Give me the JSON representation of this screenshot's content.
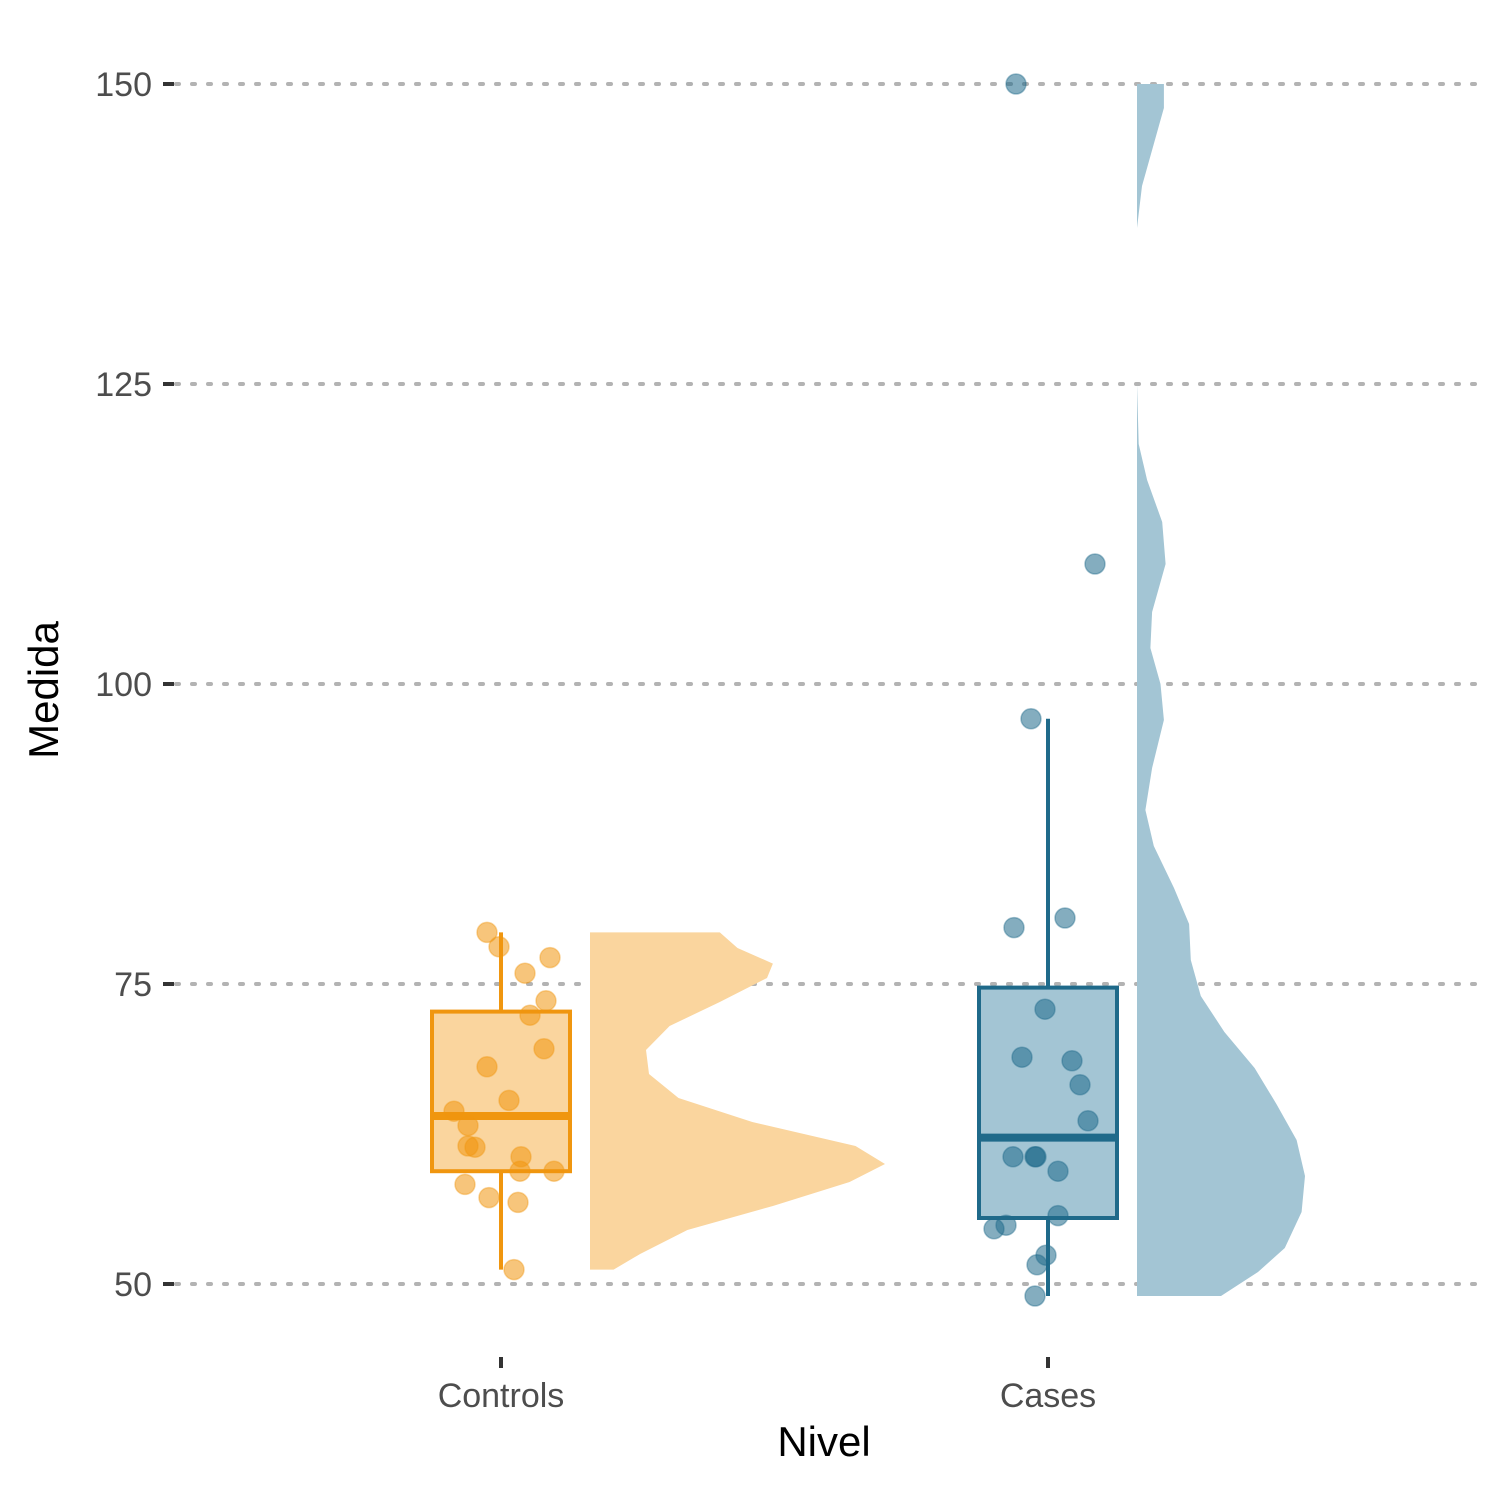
{
  "chart_data": {
    "type": "raincloud",
    "xlabel": "Nivel",
    "ylabel": "Medida",
    "ylim": [
      45,
      152
    ],
    "yticks": [
      50,
      75,
      100,
      125,
      150
    ],
    "grid": "horizontal dotted",
    "categories": [
      "Controls",
      "Cases"
    ],
    "groups": [
      {
        "name": "Controls",
        "color": "#F0960F",
        "fill": "#FAD59E",
        "points": [
          79.3,
          78.1,
          77.2,
          75.9,
          73.6,
          72.4,
          69.6,
          68.1,
          65.3,
          64.4,
          63.2,
          61.5,
          61.4,
          60.6,
          59.4,
          59.4,
          58.3,
          57.2,
          56.8,
          51.2
        ],
        "box": {
          "whisker_low": 51.2,
          "q1": 59.4,
          "median": 64.0,
          "q3": 72.7,
          "whisker_high": 79.3
        },
        "density": [
          [
            51.2,
            0.08
          ],
          [
            52.5,
            0.17
          ],
          [
            54.5,
            0.33
          ],
          [
            56.5,
            0.62
          ],
          [
            58.5,
            0.88
          ],
          [
            60.0,
            1.0
          ],
          [
            61.5,
            0.9
          ],
          [
            63.5,
            0.55
          ],
          [
            65.5,
            0.3
          ],
          [
            67.5,
            0.2
          ],
          [
            69.5,
            0.19
          ],
          [
            71.5,
            0.27
          ],
          [
            73.5,
            0.44
          ],
          [
            75.5,
            0.6
          ],
          [
            76.7,
            0.62
          ],
          [
            78.0,
            0.5
          ],
          [
            79.3,
            0.44
          ]
        ]
      },
      {
        "name": "Cases",
        "color": "#1F6A8A",
        "fill": "#A3C5D4",
        "points": [
          150.0,
          110.0,
          97.1,
          80.5,
          79.7,
          72.9,
          68.9,
          68.6,
          66.6,
          63.6,
          60.6,
          60.6,
          60.6,
          59.4,
          55.7,
          54.9,
          54.6,
          52.4,
          51.6,
          49.0
        ],
        "box": {
          "whisker_low": 49.0,
          "q1": 55.5,
          "median": 62.2,
          "q3": 74.7,
          "whisker_high": 97.1
        },
        "density": [
          [
            49.0,
            0.5
          ],
          [
            51.0,
            0.72
          ],
          [
            53.0,
            0.88
          ],
          [
            56.0,
            0.98
          ],
          [
            59.0,
            1.0
          ],
          [
            62.0,
            0.95
          ],
          [
            65.0,
            0.83
          ],
          [
            68.0,
            0.7
          ],
          [
            71.0,
            0.52
          ],
          [
            74.0,
            0.38
          ],
          [
            77.0,
            0.32
          ],
          [
            80.0,
            0.31
          ],
          [
            83.0,
            0.22
          ],
          [
            86.5,
            0.1
          ],
          [
            89.5,
            0.05
          ],
          [
            93.0,
            0.09
          ],
          [
            97.0,
            0.16
          ],
          [
            100.0,
            0.14
          ],
          [
            103.0,
            0.08
          ],
          [
            106.0,
            0.09
          ],
          [
            110.0,
            0.17
          ],
          [
            113.5,
            0.15
          ],
          [
            117.0,
            0.06
          ],
          [
            120.0,
            0.01
          ],
          [
            125.0,
            0.0
          ],
          [
            138.0,
            0.0
          ],
          [
            141.5,
            0.03
          ],
          [
            145.0,
            0.1
          ],
          [
            148.0,
            0.16
          ],
          [
            150.0,
            0.16
          ]
        ]
      }
    ]
  }
}
